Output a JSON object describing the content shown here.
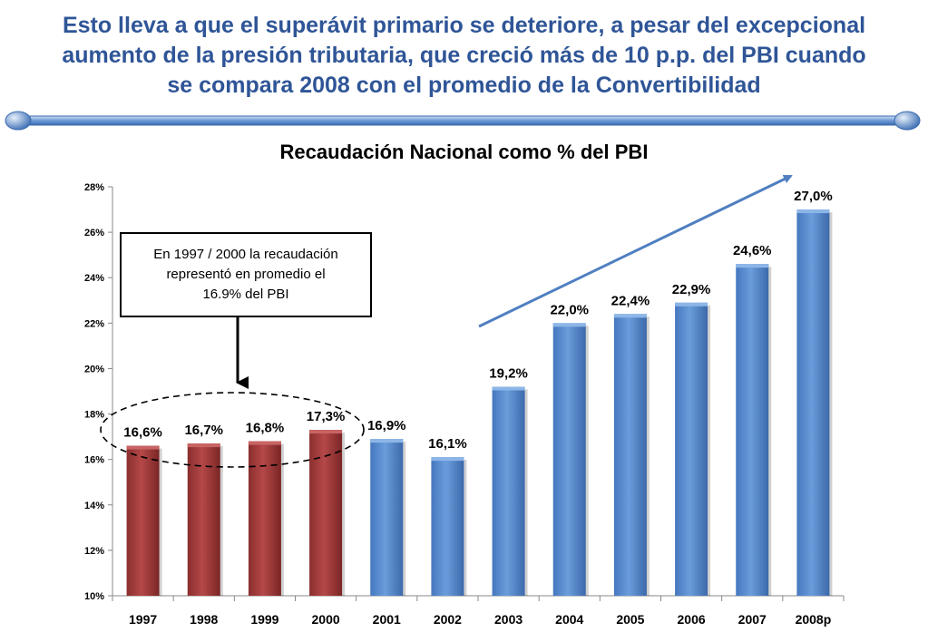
{
  "slide": {
    "title_lines": [
      "Esto lleva a que el superávit primario se deteriore, a pesar del excepcional",
      "aumento de la presión tributaria, que creció más de 10 p.p. del PBI cuando",
      "se compara 2008 con el promedio de la Convertibilidad"
    ],
    "title_color": "#2F5597",
    "divider_color": "#4F7FC0"
  },
  "callout": {
    "lines": [
      "En 1997 / 2000 la recaudación",
      "representó en promedio el",
      "16.9% del PBI"
    ]
  },
  "chart_data": {
    "type": "bar",
    "title": "Recaudación Nacional como % del PBI",
    "xlabel": "",
    "ylabel": "",
    "categories": [
      "1997",
      "1998",
      "1999",
      "2000",
      "2001",
      "2002",
      "2003",
      "2004",
      "2005",
      "2006",
      "2007",
      "2008p"
    ],
    "values": [
      16.6,
      16.7,
      16.8,
      17.3,
      16.9,
      16.1,
      19.2,
      22.0,
      22.4,
      22.9,
      24.6,
      27.0
    ],
    "value_labels": [
      "16,6%",
      "16,7%",
      "16,8%",
      "17,3%",
      "16,9%",
      "16,1%",
      "19,2%",
      "22,0%",
      "22,4%",
      "22,9%",
      "24,6%",
      "27,0%"
    ],
    "ylim": [
      10,
      28
    ],
    "yticks": [
      10,
      12,
      14,
      16,
      18,
      20,
      22,
      24,
      26,
      28
    ],
    "ytick_labels": [
      "10%",
      "12%",
      "14%",
      "16%",
      "18%",
      "20%",
      "22%",
      "24%",
      "26%",
      "28%"
    ],
    "grid": false,
    "bar_colors": [
      "#A33A3A",
      "#A33A3A",
      "#A33A3A",
      "#A33A3A",
      "#5B8FD0",
      "#5B8FD0",
      "#5B8FD0",
      "#5B8FD0",
      "#5B8FD0",
      "#5B8FD0",
      "#5B8FD0",
      "#5B8FD0"
    ],
    "highlighted_years": [
      "1997",
      "1998",
      "1999",
      "2000"
    ],
    "trend_arrow_color": "#4F7FC0"
  }
}
